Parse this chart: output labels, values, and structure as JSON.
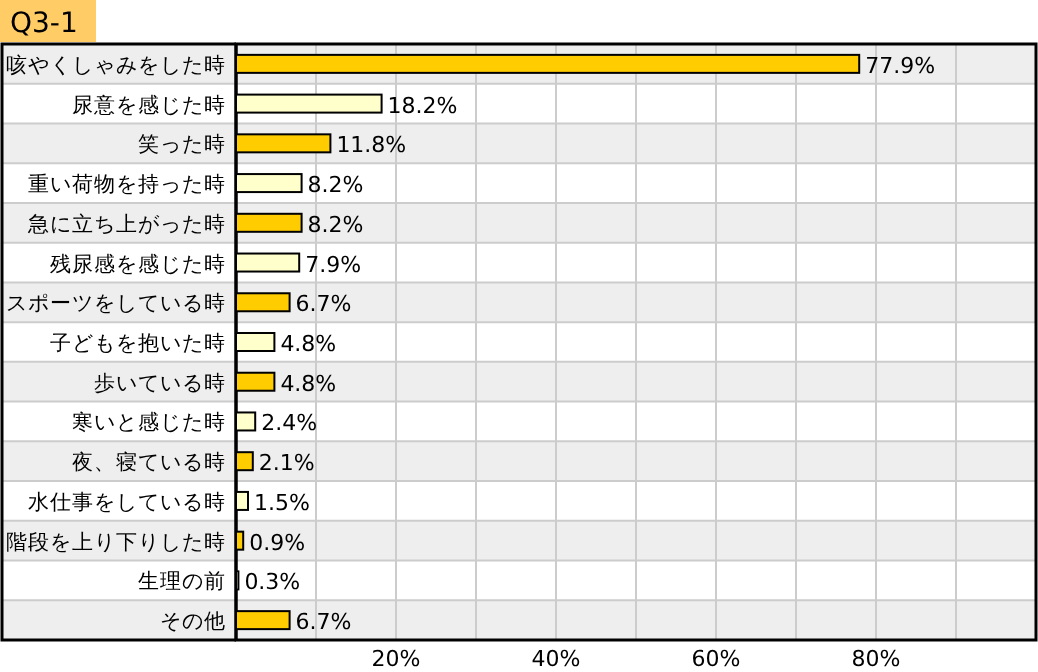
{
  "chart_data": {
    "type": "bar",
    "orientation": "horizontal",
    "title": "Q3-1",
    "categories": [
      "咳やくしゃみをした時",
      "尿意を感じた時",
      "笑った時",
      "重い荷物を持った時",
      "急に立ち上がった時",
      "残尿感を感じた時",
      "スポーツをしている時",
      "子どもを抱いた時",
      "歩いている時",
      "寒いと感じた時",
      "夜、寝ている時",
      "水仕事をしている時",
      "階段を上り下りした時",
      "生理の前",
      "その他"
    ],
    "values": [
      77.9,
      18.2,
      11.8,
      8.2,
      8.2,
      7.9,
      6.7,
      4.8,
      4.8,
      2.4,
      2.1,
      1.5,
      0.9,
      0.3,
      6.7
    ],
    "colors": [
      "#ffcc00",
      "#ffffcc",
      "#ffcc00",
      "#ffffcc",
      "#ffcc00",
      "#ffffcc",
      "#ffcc00",
      "#ffffcc",
      "#ffcc00",
      "#ffffcc",
      "#ffcc00",
      "#ffffcc",
      "#ffcc00",
      "#ffffcc",
      "#ffcc00"
    ],
    "value_labels": [
      "77.9%",
      "18.2%",
      "11.8%",
      "8.2%",
      "8.2%",
      "7.9%",
      "6.7%",
      "4.8%",
      "4.8%",
      "2.4%",
      "2.1%",
      "1.5%",
      "0.9%",
      "0.3%",
      "6.7%"
    ],
    "xlim": [
      0,
      100
    ],
    "xticks": [
      {
        "value": 10,
        "label": null
      },
      {
        "value": 20,
        "label": "20%"
      },
      {
        "value": 30,
        "label": null
      },
      {
        "value": 40,
        "label": "40%"
      },
      {
        "value": 50,
        "label": null
      },
      {
        "value": 60,
        "label": "60%"
      },
      {
        "value": 70,
        "label": null
      },
      {
        "value": 80,
        "label": "80%"
      },
      {
        "value": 90,
        "label": null
      }
    ],
    "grid": "x"
  }
}
